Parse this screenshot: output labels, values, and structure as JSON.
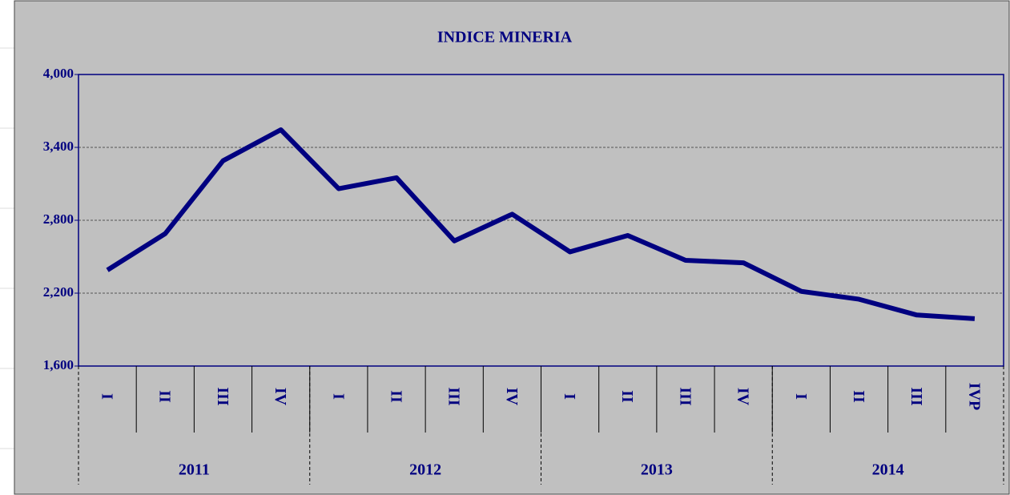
{
  "chart_data": {
    "type": "line",
    "title": "INDICE MINERIA",
    "categories": [
      "I",
      "II",
      "III",
      "IV",
      "I",
      "II",
      "III",
      "IV",
      "I",
      "II",
      "III",
      "IV",
      "I",
      "II",
      "III",
      "IVP"
    ],
    "groups": [
      {
        "label": "2011",
        "span": 4
      },
      {
        "label": "2012",
        "span": 4
      },
      {
        "label": "2013",
        "span": 4
      },
      {
        "label": "2014",
        "span": 4
      }
    ],
    "values": [
      2390,
      2690,
      3290,
      3545,
      3060,
      3150,
      2630,
      2850,
      2540,
      2675,
      2470,
      2450,
      2215,
      2150,
      2020,
      1990
    ],
    "color": "#000080",
    "ylim": [
      1600,
      4000
    ],
    "yticks": [
      {
        "value": 1600,
        "label": "1,600"
      },
      {
        "value": 2200,
        "label": "2,200"
      },
      {
        "value": 2800,
        "label": "2,800"
      },
      {
        "value": 3400,
        "label": "3,400"
      },
      {
        "value": 4000,
        "label": "4,000"
      }
    ],
    "grid": true
  }
}
